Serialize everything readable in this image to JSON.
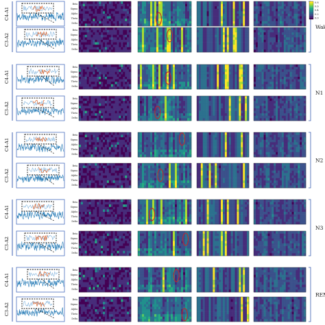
{
  "figure": {
    "stages": [
      {
        "label": "Wake",
        "channels": [
          "C4-A1",
          "C3-A2"
        ]
      },
      {
        "label": "N1",
        "channels": [
          "C4-A1",
          "C3-A2"
        ]
      },
      {
        "label": "N2",
        "channels": [
          "C4-A1",
          "C3-A2"
        ]
      },
      {
        "label": "N3",
        "channels": [
          "C4-A1",
          "C3-A2"
        ]
      },
      {
        "label": "REM",
        "channels": [
          "C4-A1",
          "C3-A2"
        ]
      }
    ],
    "band_labels": [
      "Beta",
      "Sigma",
      "Alpha",
      "Theta",
      "Delta"
    ],
    "colorbar": {
      "ticks": [
        "0.8",
        "0.6",
        "0.4",
        "0.2",
        "0.0"
      ]
    },
    "palette": [
      "#440154",
      "#472c7a",
      "#3b518b",
      "#2c718e",
      "#21908d",
      "#27ad81",
      "#5cc863",
      "#aadc32",
      "#fde725"
    ]
  }
}
